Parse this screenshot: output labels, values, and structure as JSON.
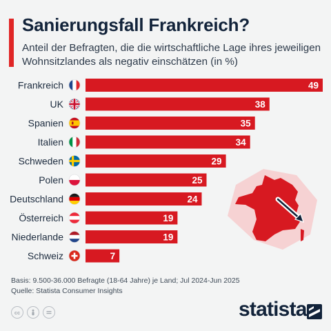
{
  "header": {
    "title": "Sanierungsfall Frankreich?",
    "subtitle": "Anteil der Befragten, die die wirtschaftliche Lage ihres jeweiligen Wohnsitzlandes als negativ einschätzen (in %)"
  },
  "colors": {
    "bar": "#d71921",
    "accent": "#e02626",
    "text": "#1c2b3e",
    "background": "#f3f4f4"
  },
  "chart_data": {
    "type": "bar",
    "orientation": "horizontal",
    "categories": [
      "Frankreich",
      "UK",
      "Spanien",
      "Italien",
      "Schweden",
      "Polen",
      "Deutschland",
      "Österreich",
      "Niederlande",
      "Schweiz"
    ],
    "flags": [
      "france-flag-icon",
      "uk-flag-icon",
      "spain-flag-icon",
      "italy-flag-icon",
      "sweden-flag-icon",
      "poland-flag-icon",
      "germany-flag-icon",
      "austria-flag-icon",
      "netherlands-flag-icon",
      "switzerland-flag-icon"
    ],
    "values": [
      49,
      38,
      35,
      34,
      29,
      25,
      24,
      19,
      19,
      7
    ],
    "xlim": [
      0,
      49
    ],
    "data_labels": true,
    "grid": false,
    "decoration": "map-of-france-with-downward-arrow"
  },
  "footer": {
    "basis": "Basis: 9.500-36.000 Befragte (18-64 Jahre) je Land; Jul 2024-Jun 2025",
    "source": "Quelle: Statista Consumer Insights",
    "brand": "statista",
    "license_icons": [
      "cc-icon",
      "attribution-icon",
      "no-derivatives-icon"
    ]
  }
}
